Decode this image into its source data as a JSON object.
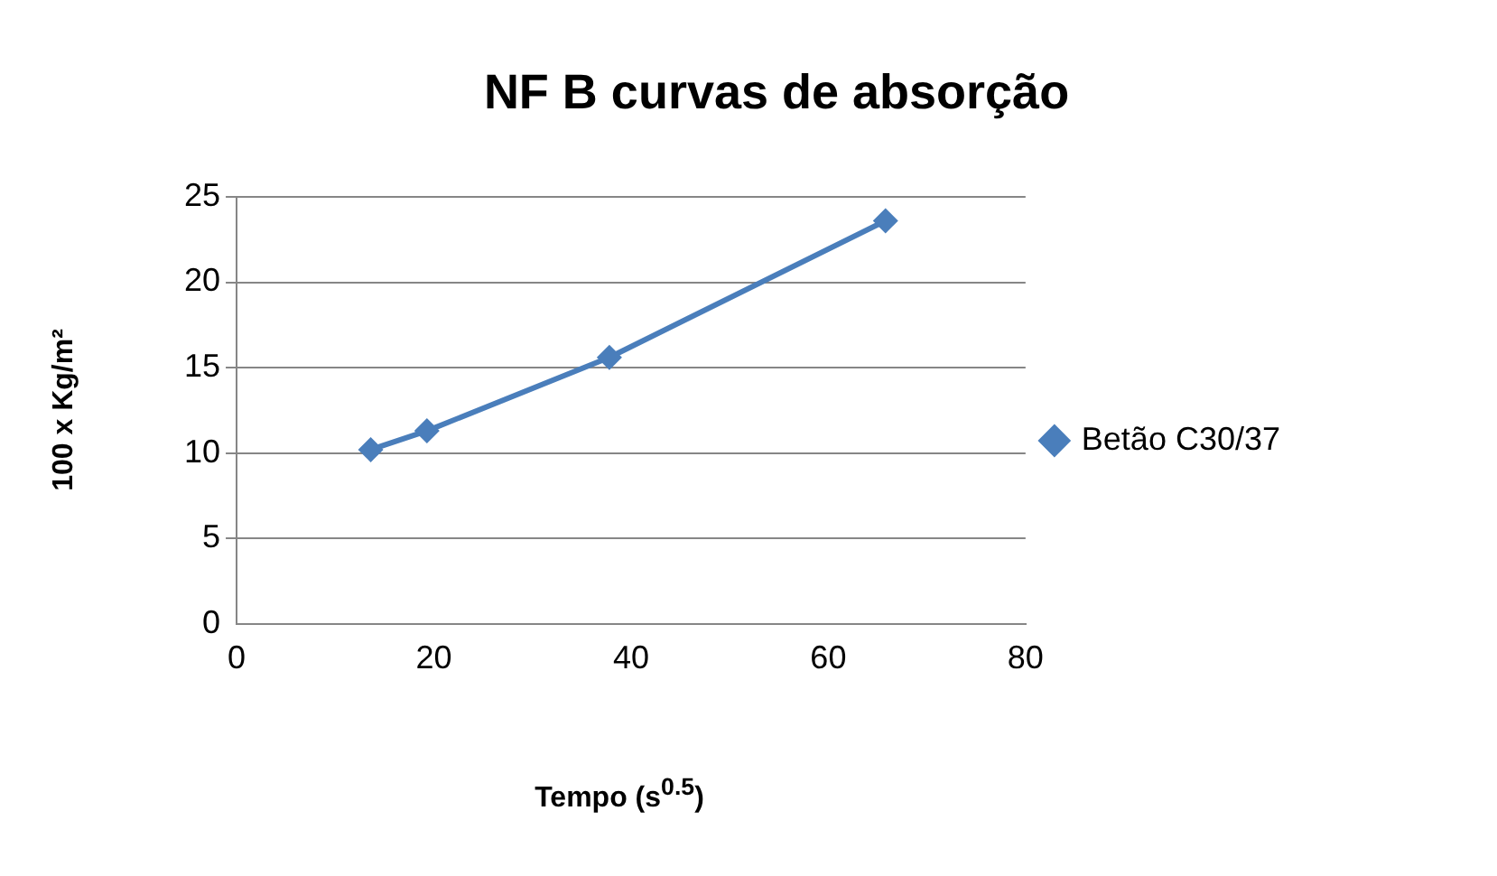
{
  "chart_data": {
    "type": "line",
    "title": "NF B curvas de absorção",
    "xlabel": "Tempo (s$^{0.5}$)",
    "ylabel": "100 x Kg/m²",
    "x": [
      13.6,
      19.3,
      37.8,
      65.8
    ],
    "series": [
      {
        "name": "Betão C30/37",
        "color": "#4a7ebb",
        "values": [
          10.2,
          11.3,
          15.6,
          23.6
        ]
      }
    ],
    "xlim": [
      0,
      80
    ],
    "xticks": [
      0,
      20,
      40,
      60,
      80
    ],
    "ylim": [
      0,
      25
    ],
    "yticks": [
      0,
      5,
      10,
      15,
      20,
      25
    ],
    "grid": "y",
    "legend": "right",
    "marker": "diamond",
    "line_style": "solid"
  }
}
